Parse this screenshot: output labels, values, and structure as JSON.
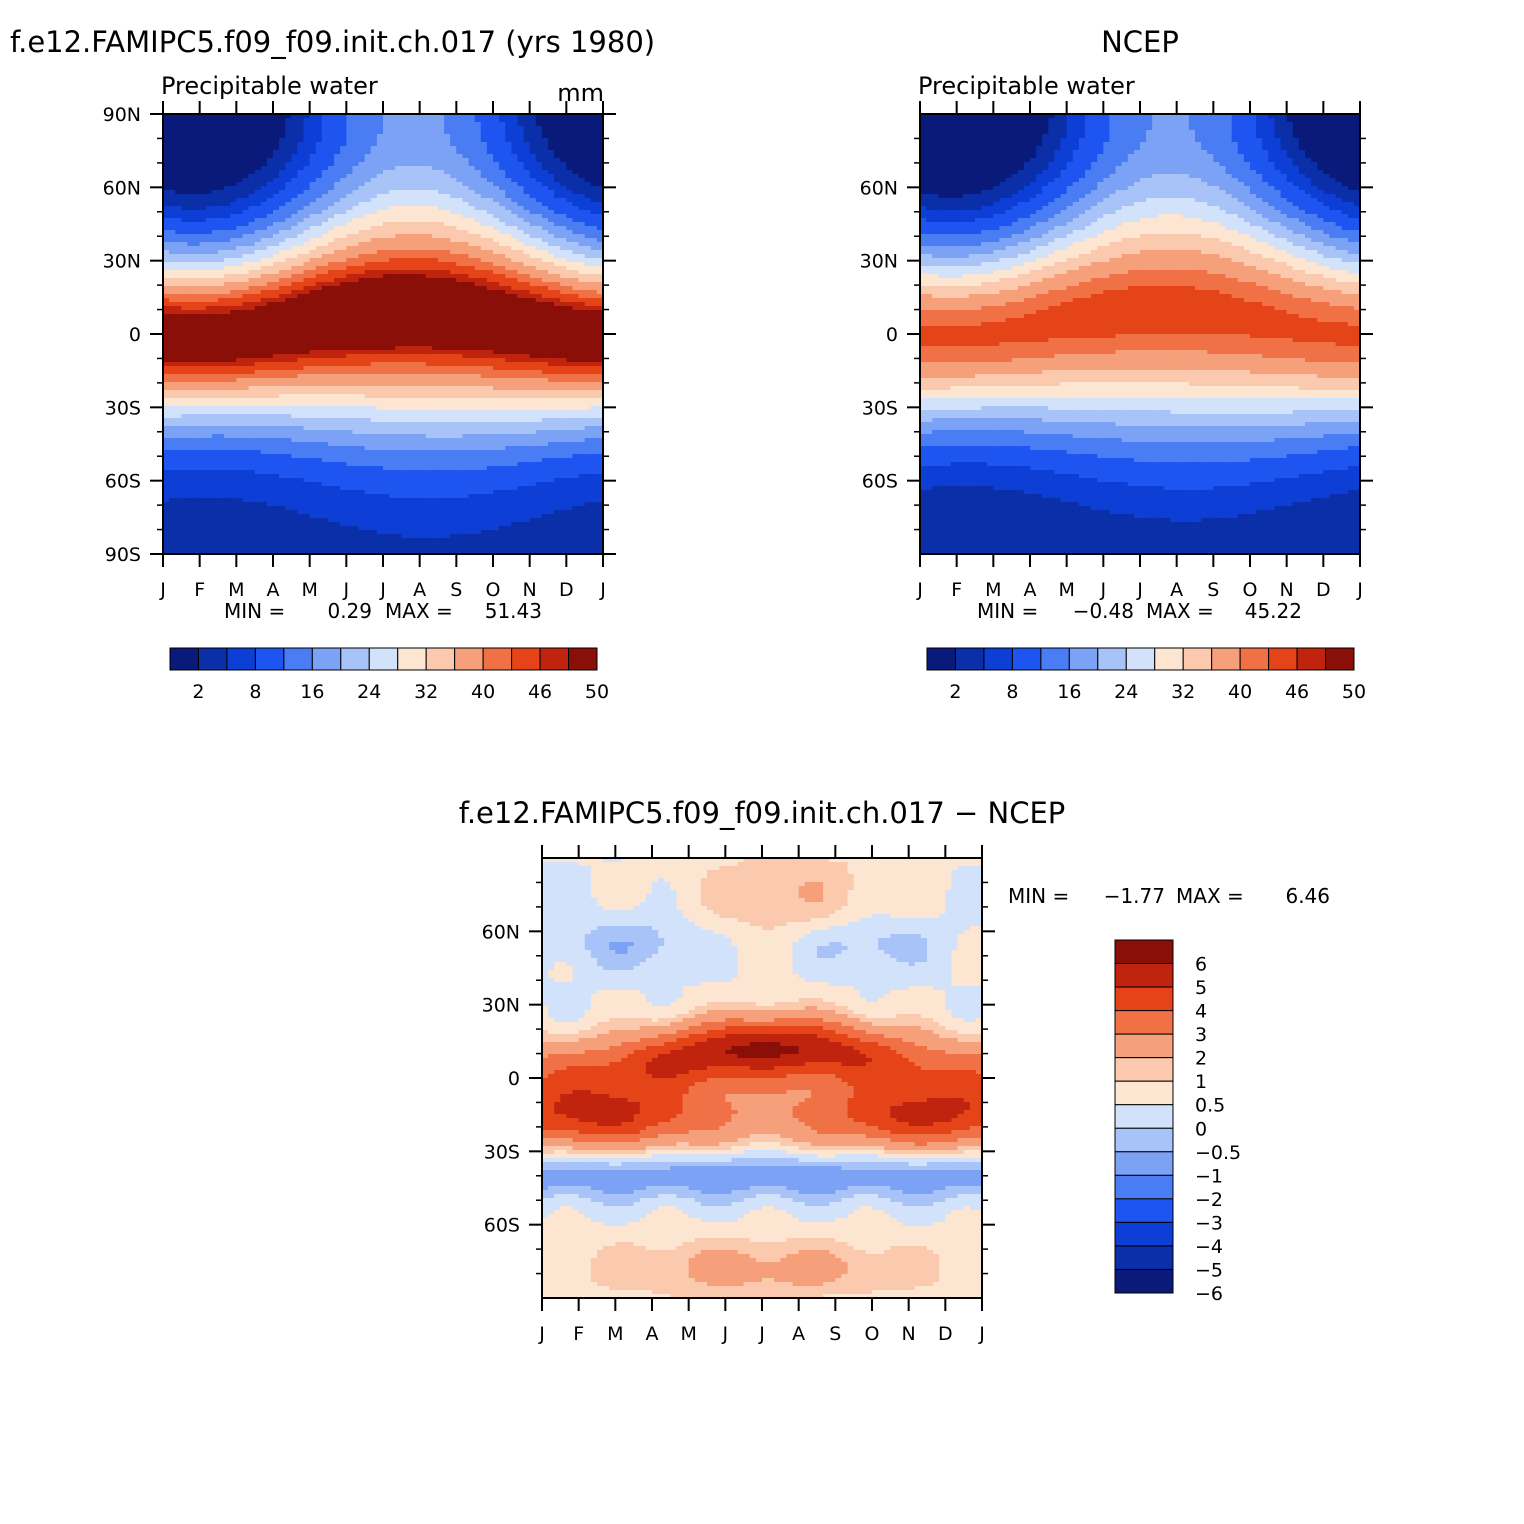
{
  "palette_main": [
    "#0a1a7a",
    "#0b2fa8",
    "#0d3fd6",
    "#1e55f0",
    "#4a7cf4",
    "#7ca2f6",
    "#a8c3f8",
    "#d2e2fb",
    "#fce6d2",
    "#fbc9ad",
    "#f6a07b",
    "#f17146",
    "#e54418",
    "#c1240e",
    "#8a0f08"
  ],
  "palette_diff": [
    "#0a1a7a",
    "#0b2fa8",
    "#0d3fd6",
    "#1e55f0",
    "#4a7cf4",
    "#7ca2f6",
    "#a8c3f8",
    "#d2e2fb",
    "#fce6d2",
    "#fbc9ad",
    "#f6a07b",
    "#f17146",
    "#e54418",
    "#c1240e",
    "#8a0f08"
  ],
  "chart_data": [
    {
      "type": "heatmap",
      "title": "f.e12.FAMIPC5.f09_f09.init.ch.017 (yrs 1980)",
      "subtitle": "Precipitable water",
      "units": "mm",
      "x_tick_labels": [
        "J",
        "F",
        "M",
        "A",
        "M",
        "J",
        "J",
        "A",
        "S",
        "O",
        "N",
        "D",
        "J"
      ],
      "y_tick_labels": [
        "90N",
        "60N",
        "30N",
        "0",
        "30S",
        "60S",
        "90S"
      ],
      "y_tick_values": [
        90,
        60,
        30,
        0,
        -30,
        -60,
        -90
      ],
      "ylim": [
        -90,
        90
      ],
      "min_label": "MIN =",
      "min_value": "0.29",
      "max_label": "MAX =",
      "max_value": "51.43",
      "data_min": 0.29,
      "data_max": 51.43,
      "levels": [
        2,
        5,
        8,
        12,
        16,
        20,
        24,
        28,
        32,
        36,
        40,
        43,
        46,
        48,
        50
      ],
      "colorbar_labels": [
        "2",
        "8",
        "16",
        "24",
        "32",
        "40",
        "46",
        "50"
      ]
    },
    {
      "type": "heatmap",
      "title": "NCEP",
      "subtitle": "Precipitable water",
      "x_tick_labels": [
        "J",
        "F",
        "M",
        "A",
        "M",
        "J",
        "J",
        "A",
        "S",
        "O",
        "N",
        "D",
        "J"
      ],
      "y_tick_labels": [
        "60N",
        "30N",
        "0",
        "30S",
        "60S"
      ],
      "y_tick_values": [
        60,
        30,
        0,
        -30,
        -60
      ],
      "ylim": [
        -90,
        90
      ],
      "min_label": "MIN =",
      "min_value": "−0.48",
      "max_label": "MAX =",
      "max_value": "45.22",
      "data_min": -0.48,
      "data_max": 45.22,
      "levels": [
        2,
        5,
        8,
        12,
        16,
        20,
        24,
        28,
        32,
        36,
        40,
        43,
        46,
        48,
        50
      ],
      "colorbar_labels": [
        "2",
        "8",
        "16",
        "24",
        "32",
        "40",
        "46",
        "50"
      ]
    },
    {
      "type": "heatmap",
      "title": "f.e12.FAMIPC5.f09_f09.init.ch.017 − NCEP",
      "x_tick_labels": [
        "J",
        "F",
        "M",
        "A",
        "M",
        "J",
        "J",
        "A",
        "S",
        "O",
        "N",
        "D",
        "J"
      ],
      "y_tick_labels": [
        "60N",
        "30N",
        "0",
        "30S",
        "60S"
      ],
      "y_tick_values": [
        60,
        30,
        0,
        -30,
        -60
      ],
      "ylim": [
        -90,
        90
      ],
      "min_label": "MIN =",
      "min_value": "−1.77",
      "max_label": "MAX =",
      "max_value": "6.46",
      "data_min": -1.77,
      "data_max": 6.46,
      "levels": [
        -6,
        -5,
        -4,
        -3,
        -2,
        -1,
        -0.5,
        0,
        0.5,
        1,
        2,
        3,
        4,
        5,
        6
      ],
      "colorbar_labels": [
        "6",
        "5",
        "4",
        "3",
        "2",
        "1",
        "0.5",
        "0",
        "−0.5",
        "−1",
        "−2",
        "−3",
        "−4",
        "−5",
        "−6"
      ]
    }
  ]
}
